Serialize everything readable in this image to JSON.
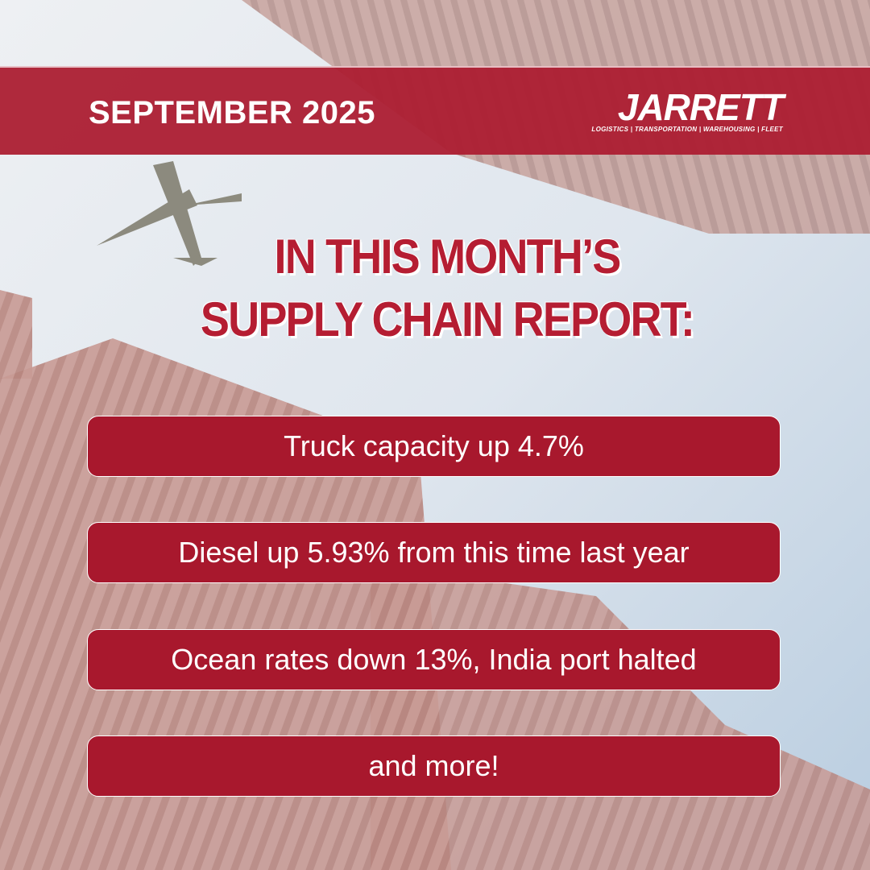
{
  "header": {
    "date": "SEPTEMBER 2025",
    "logo": "JARRETT",
    "tagline": "LOGISTICS | TRANSPORTATION | WAREHOUSING | FLEET"
  },
  "headline": {
    "lines": [
      "IN THIS MONTH’S",
      "SUPPLY CHAIN REPORT:"
    ]
  },
  "items": [
    "Truck capacity up 4.7%",
    "Diesel up 5.93% from this time last year",
    "Ocean rates down 13%, India port halted",
    "and more!"
  ]
}
